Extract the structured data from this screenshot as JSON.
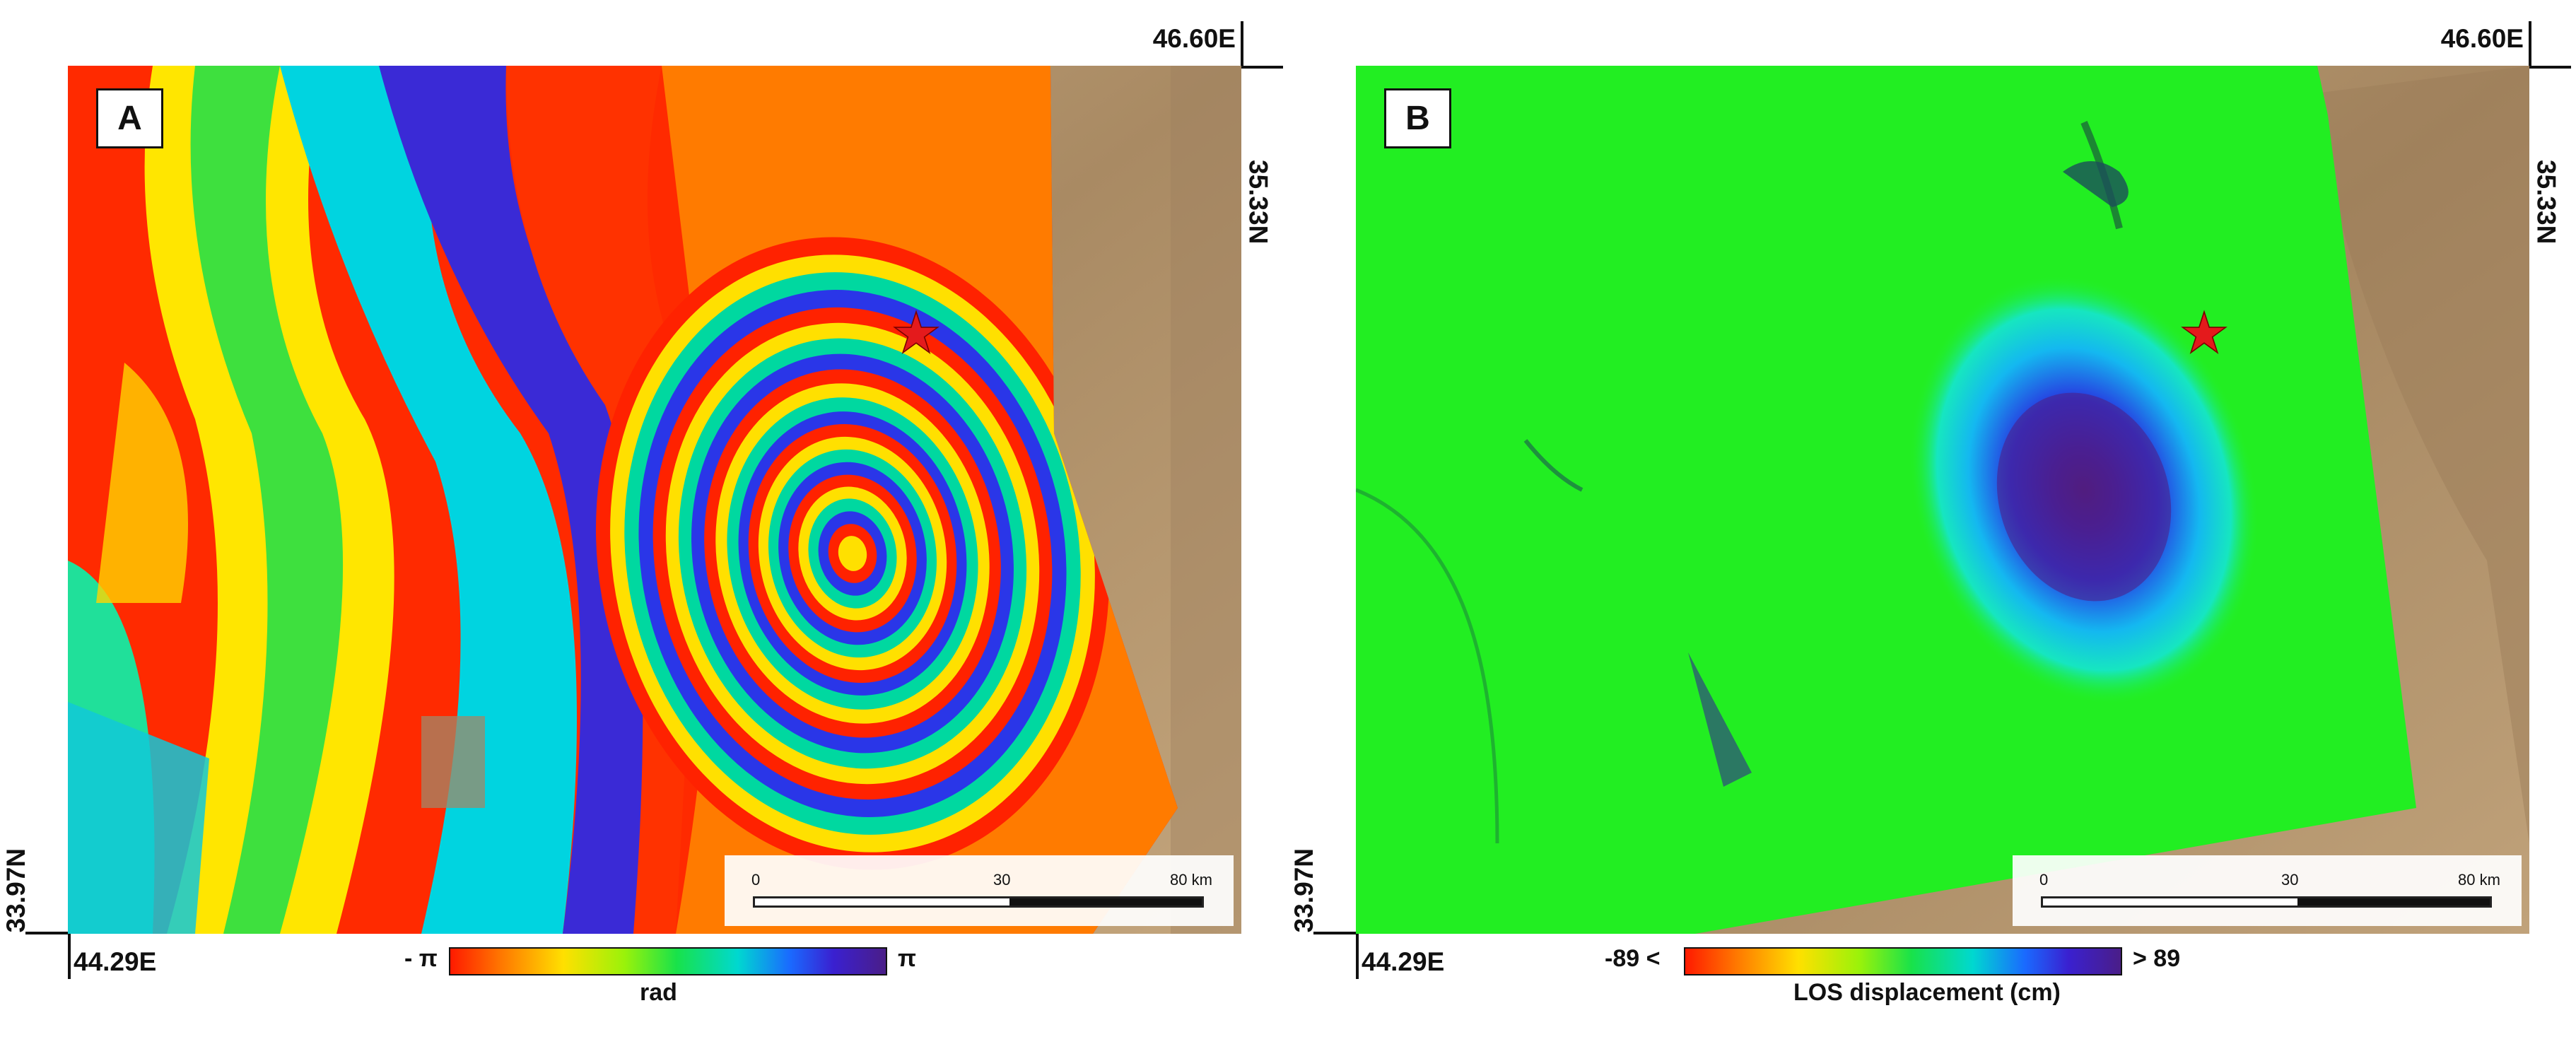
{
  "panels": [
    {
      "label": "A",
      "coords": {
        "top_right_lon": "46.60E",
        "top_right_lat": "35.33N",
        "bottom_left_lat": "33.97N",
        "bottom_left_lon": "44.29E"
      },
      "scalebar": {
        "ticks": [
          "0",
          "30",
          "80 km"
        ]
      },
      "legend": {
        "min_label": "- π",
        "max_label": "π",
        "unit": "rad"
      }
    },
    {
      "label": "B",
      "coords": {
        "top_right_lon": "46.60E",
        "top_right_lat": "35.33N",
        "bottom_left_lat": "33.97N",
        "bottom_left_lon": "44.29E"
      },
      "scalebar": {
        "ticks": [
          "0",
          "30",
          "80 km"
        ]
      },
      "legend": {
        "min_label": "-89 <",
        "max_label": "> 89",
        "unit": "LOS displacement (cm)"
      }
    }
  ],
  "colors": {
    "epicenter_star": "#e41a1c",
    "terrain": "#b99b72",
    "displacement_field": "#22ee22",
    "displacement_min": "#4a1e88"
  },
  "icons": {
    "epicenter": "star-icon"
  }
}
